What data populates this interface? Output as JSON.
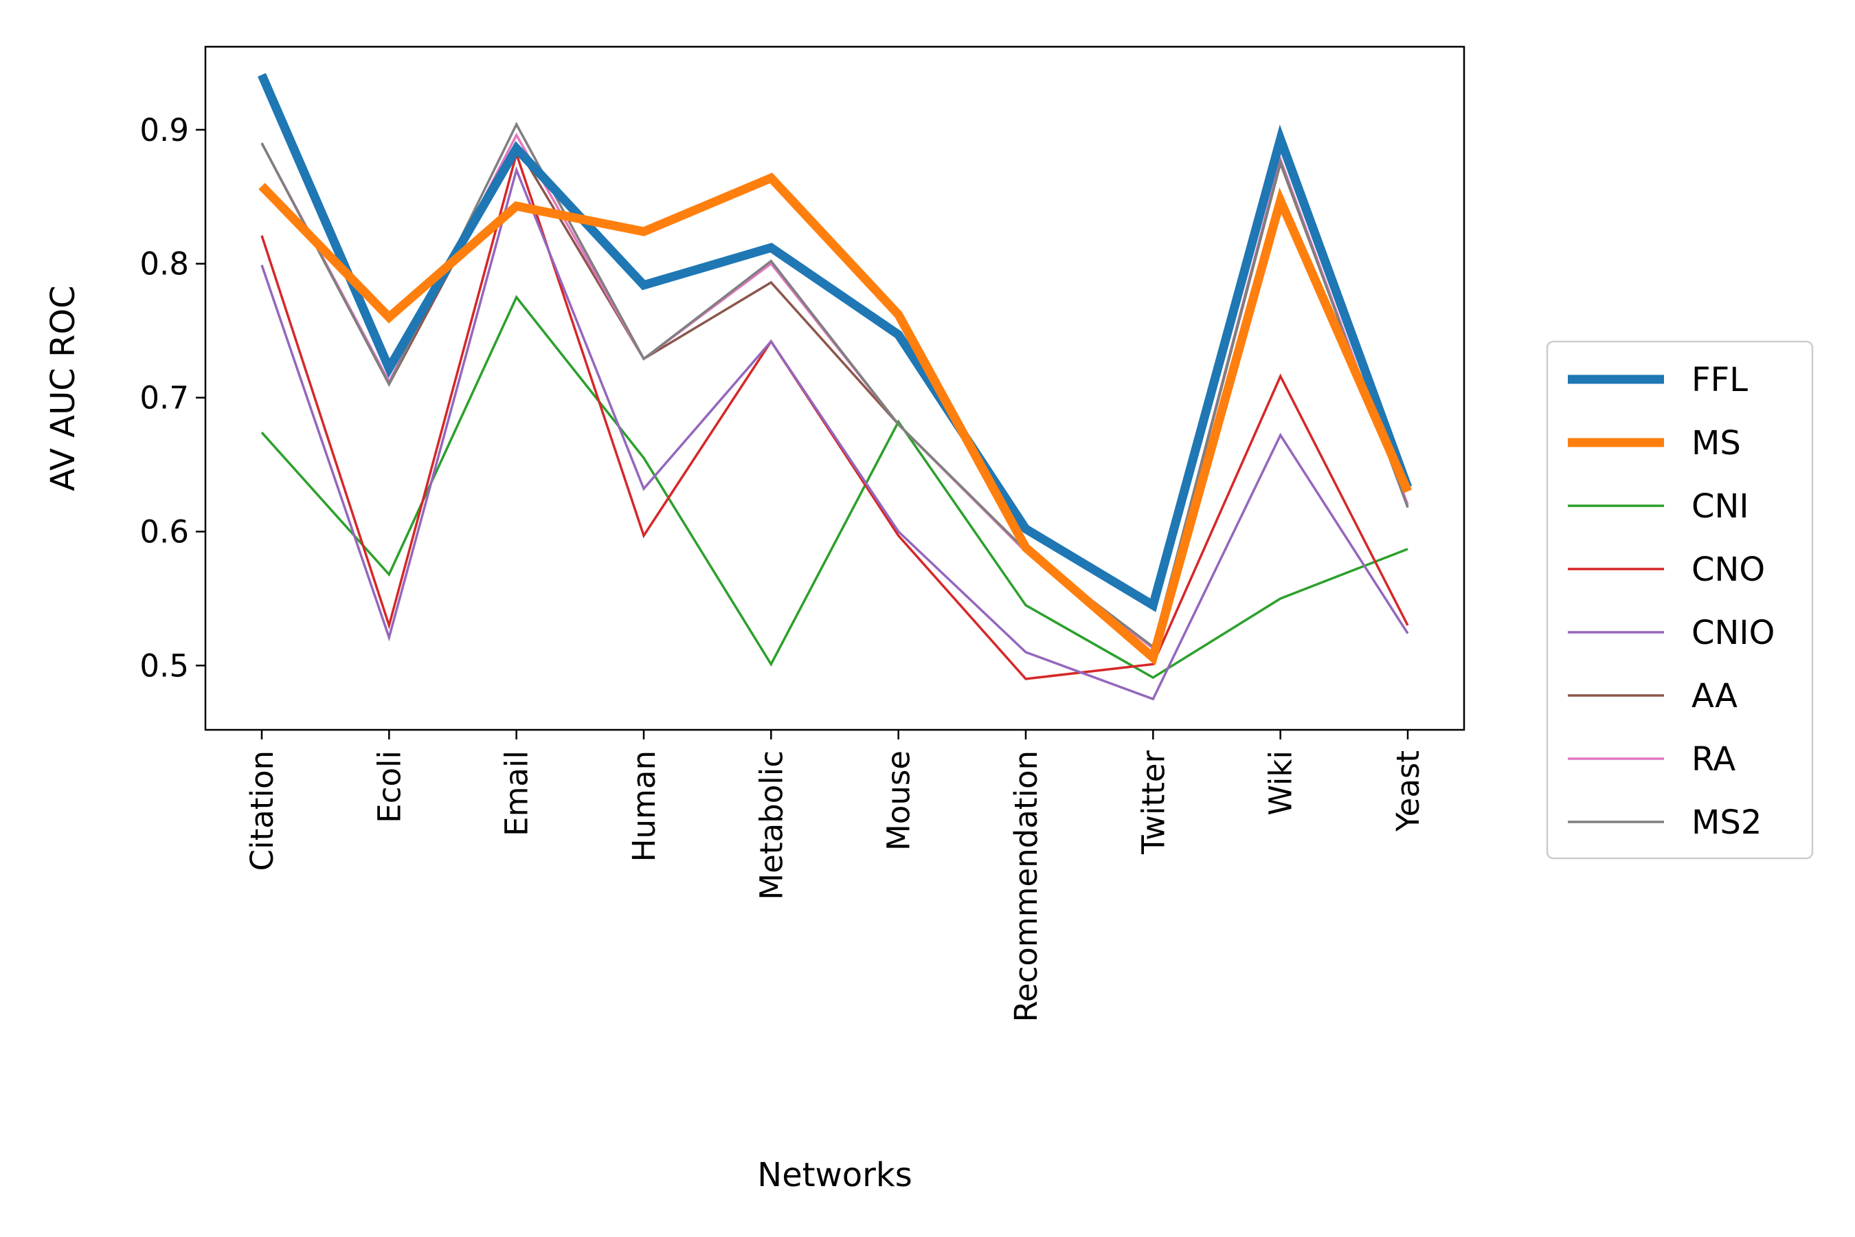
{
  "chart_data": {
    "type": "line",
    "title": "",
    "xlabel": "Networks",
    "ylabel": "AV AUC ROC",
    "ylim": [
      0.452,
      0.962
    ],
    "y_ticks": [
      "0.5",
      "0.6",
      "0.7",
      "0.8",
      "0.9"
    ],
    "grid": false,
    "legend_position": "center-right outside",
    "categories": [
      "Citation",
      "Ecoli",
      "Email",
      "Human",
      "Metabolic",
      "Mouse",
      "Recommendation",
      "Twitter",
      "Wiki",
      "Yeast"
    ],
    "series": [
      {
        "name": "FFL",
        "color": "#1f77b4",
        "emphasis": "thick",
        "values": [
          0.941,
          0.722,
          0.886,
          0.784,
          0.812,
          0.747,
          0.602,
          0.545,
          0.893,
          0.633
        ]
      },
      {
        "name": "MS",
        "color": "#ff7f0e",
        "emphasis": "thick",
        "values": [
          0.858,
          0.76,
          0.843,
          0.824,
          0.864,
          0.762,
          0.588,
          0.506,
          0.847,
          0.63
        ]
      },
      {
        "name": "CNI",
        "color": "#2ca02c",
        "emphasis": "thin",
        "values": [
          0.674,
          0.568,
          0.775,
          0.655,
          0.501,
          0.682,
          0.545,
          0.491,
          0.55,
          0.587
        ]
      },
      {
        "name": "CNO",
        "color": "#d62728",
        "emphasis": "thin",
        "values": [
          0.821,
          0.53,
          0.882,
          0.597,
          0.742,
          0.597,
          0.49,
          0.501,
          0.716,
          0.53
        ]
      },
      {
        "name": "CNIO",
        "color": "#9467bd",
        "emphasis": "thin",
        "values": [
          0.799,
          0.521,
          0.87,
          0.632,
          0.742,
          0.6,
          0.51,
          0.475,
          0.672,
          0.524
        ]
      },
      {
        "name": "AA",
        "color": "#8c564b",
        "emphasis": "thin",
        "values": [
          0.89,
          0.71,
          0.888,
          0.729,
          0.786,
          0.68,
          0.585,
          0.513,
          0.875,
          0.62
        ]
      },
      {
        "name": "RA",
        "color": "#e377c2",
        "emphasis": "thin",
        "values": [
          0.89,
          0.712,
          0.896,
          0.729,
          0.8,
          0.68,
          0.585,
          0.513,
          0.878,
          0.62
        ]
      },
      {
        "name": "MS2",
        "color": "#7f7f7f",
        "emphasis": "thin",
        "values": [
          0.89,
          0.71,
          0.904,
          0.729,
          0.802,
          0.68,
          0.586,
          0.514,
          0.876,
          0.618
        ]
      }
    ]
  }
}
